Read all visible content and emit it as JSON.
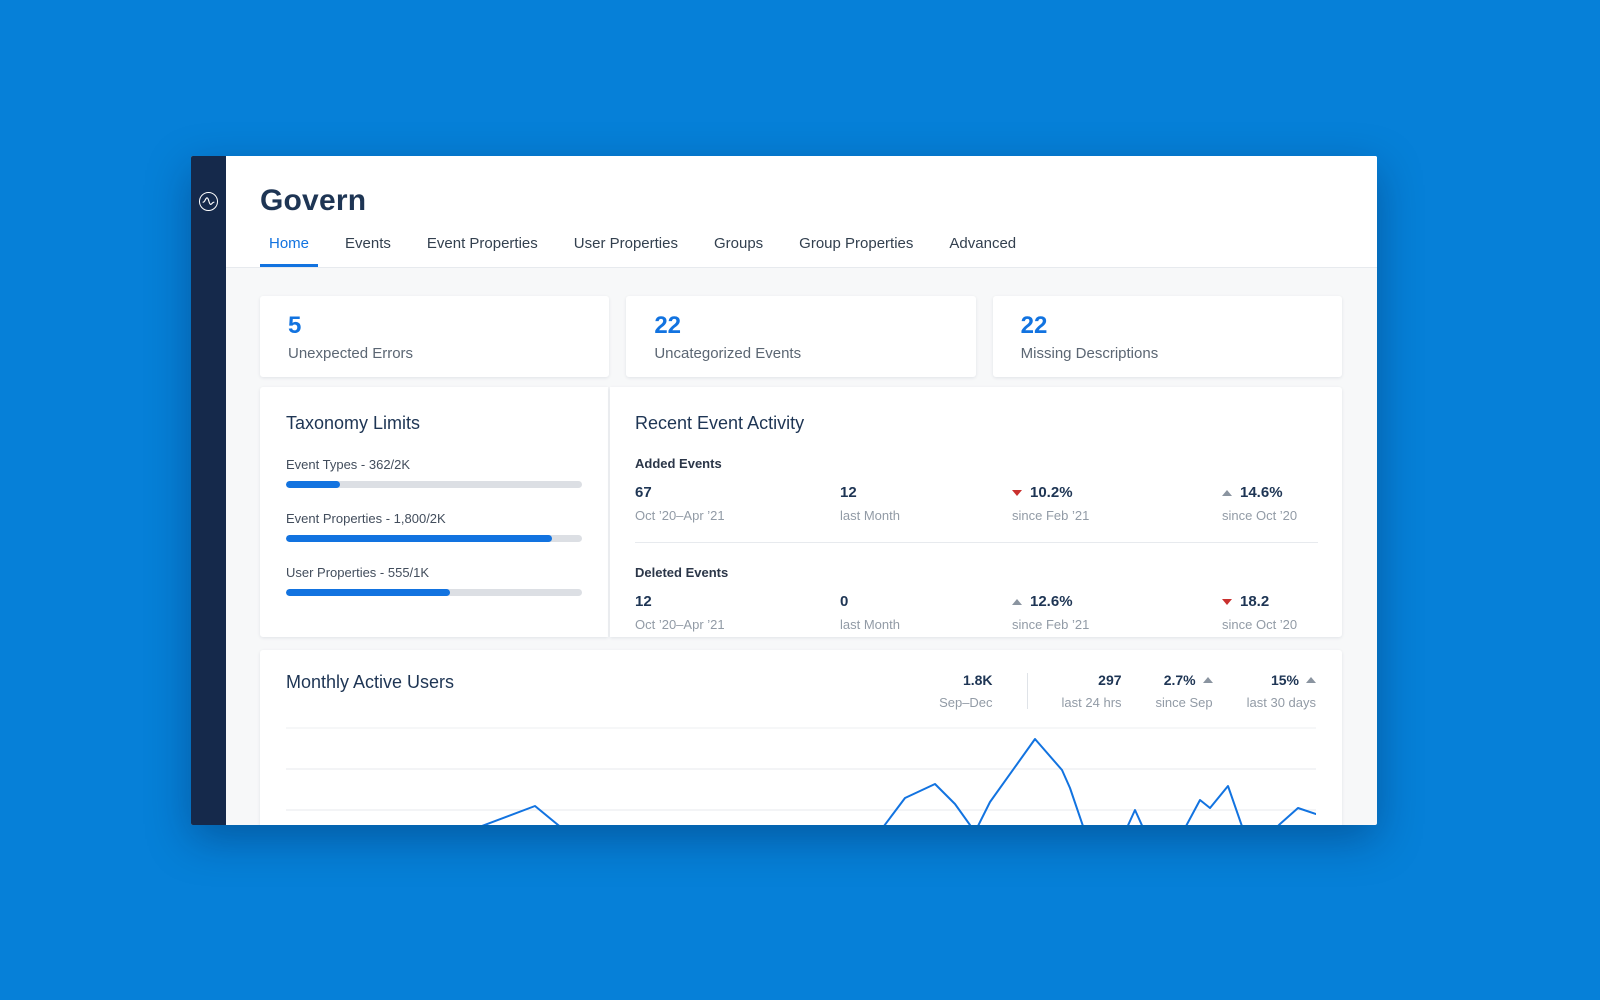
{
  "page": {
    "title": "Govern"
  },
  "nav": {
    "active_tab": "Home",
    "tabs": [
      {
        "label": "Home"
      },
      {
        "label": "Events"
      },
      {
        "label": "Event Properties"
      },
      {
        "label": "User Properties"
      },
      {
        "label": "Groups"
      },
      {
        "label": "Group Properties"
      },
      {
        "label": "Advanced"
      }
    ]
  },
  "summary_cards": [
    {
      "value": "5",
      "label": "Unexpected Errors"
    },
    {
      "value": "22",
      "label": "Uncategorized Events"
    },
    {
      "value": "22",
      "label": "Missing Descriptions"
    }
  ],
  "taxonomy": {
    "title": "Taxonomy Limits",
    "items": [
      {
        "label": "Event Types - 362/2K",
        "percent": 18.1
      },
      {
        "label": "Event Properties - 1,800/2K",
        "percent": 90
      },
      {
        "label": "User Properties - 555/1K",
        "percent": 55.5
      }
    ]
  },
  "recent_activity": {
    "title": "Recent Event Activity",
    "sections": [
      {
        "label": "Added Events",
        "stats": [
          {
            "value": "67",
            "caption": "Oct ’20–Apr ’21",
            "trend": null
          },
          {
            "value": "12",
            "caption": "last Month",
            "trend": null
          },
          {
            "value": "10.2%",
            "caption": "since Feb ’21",
            "trend": "down",
            "trend_color": "red"
          },
          {
            "value": "14.6%",
            "caption": "since Oct ’20",
            "trend": "up",
            "trend_color": "gray"
          }
        ]
      },
      {
        "label": "Deleted Events",
        "stats": [
          {
            "value": "12",
            "caption": "Oct ’20–Apr ’21",
            "trend": null
          },
          {
            "value": "0",
            "caption": "last Month",
            "trend": null
          },
          {
            "value": "12.6%",
            "caption": "since Feb ’21",
            "trend": "up",
            "trend_color": "gray"
          },
          {
            "value": "18.2",
            "caption": "since Oct ’20",
            "trend": "down",
            "trend_color": "red"
          }
        ]
      }
    ]
  },
  "mau": {
    "title": "Monthly Active Users",
    "stats": [
      {
        "value": "1.8K",
        "caption": "Sep–Dec",
        "trend": null
      },
      {
        "value": "297",
        "caption": "last 24 hrs",
        "trend": null
      },
      {
        "value": "2.7%",
        "caption": "since Sep",
        "trend": "up"
      },
      {
        "value": "15%",
        "caption": "last 30 days",
        "trend": "up"
      }
    ],
    "chart_data": {
      "type": "line",
      "title": "Monthly Active Users",
      "legend": "none",
      "grid": "horizontal",
      "note": "axis labels clipped below window edge; points are pixel-space estimates, y inverted",
      "points": [
        [
          60,
          140
        ],
        [
          180,
          112
        ],
        [
          249,
          86
        ],
        [
          300,
          128
        ],
        [
          420,
          132
        ],
        [
          520,
          126
        ],
        [
          589,
          118
        ],
        [
          619,
          78
        ],
        [
          649,
          64
        ],
        [
          669,
          84
        ],
        [
          689,
          112
        ],
        [
          704,
          82
        ],
        [
          749,
          19
        ],
        [
          776,
          50
        ],
        [
          784,
          68
        ],
        [
          799,
          112
        ],
        [
          839,
          112
        ],
        [
          849,
          90
        ],
        [
          859,
          112
        ],
        [
          899,
          108
        ],
        [
          914,
          80
        ],
        [
          924,
          88
        ],
        [
          942,
          66
        ],
        [
          958,
          112
        ],
        [
          980,
          118
        ],
        [
          994,
          104
        ],
        [
          1012,
          88
        ],
        [
          1030,
          94
        ]
      ]
    }
  },
  "icons": {
    "logo": "amplitude-pulse-logo"
  },
  "colors": {
    "background": "#0680d8",
    "sidebar": "#15294b",
    "accent": "#1273e0",
    "navy": "#1e3554",
    "negative": "#c9302e",
    "neutral_trend": "#8a94a0",
    "content_bg": "#f7f8f9"
  }
}
